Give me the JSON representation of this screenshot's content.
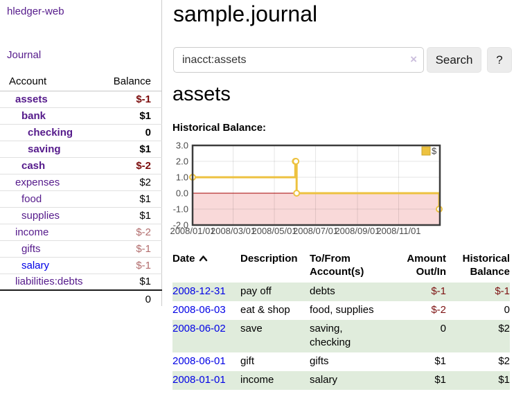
{
  "sidebar": {
    "brand": "hledger-web",
    "nav": {
      "journal": "Journal"
    },
    "columns": {
      "account": "Account",
      "balance": "Balance"
    },
    "accounts": [
      {
        "name": "assets",
        "depth": 1,
        "balance": "$-1",
        "matched": true,
        "negative": true,
        "unvisited": false
      },
      {
        "name": "bank",
        "depth": 2,
        "balance": "$1",
        "matched": true,
        "negative": false,
        "unvisited": false
      },
      {
        "name": "checking",
        "depth": 3,
        "balance": "0",
        "matched": true,
        "negative": false,
        "unvisited": false
      },
      {
        "name": "saving",
        "depth": 3,
        "balance": "$1",
        "matched": true,
        "negative": false,
        "unvisited": false
      },
      {
        "name": "cash",
        "depth": 2,
        "balance": "$-2",
        "matched": true,
        "negative": true,
        "unvisited": false
      },
      {
        "name": "expenses",
        "depth": 1,
        "balance": "$2",
        "matched": false,
        "negative": false,
        "unvisited": false
      },
      {
        "name": "food",
        "depth": 2,
        "balance": "$1",
        "matched": false,
        "negative": false,
        "unvisited": false
      },
      {
        "name": "supplies",
        "depth": 2,
        "balance": "$1",
        "matched": false,
        "negative": false,
        "unvisited": false
      },
      {
        "name": "income",
        "depth": 1,
        "balance": "$-2",
        "matched": false,
        "negative": true,
        "unvisited": false
      },
      {
        "name": "gifts",
        "depth": 2,
        "balance": "$-1",
        "matched": false,
        "negative": true,
        "unvisited": false
      },
      {
        "name": "salary",
        "depth": 2,
        "balance": "$-1",
        "matched": false,
        "negative": true,
        "unvisited": true
      },
      {
        "name": "liabilities:debts",
        "depth": 1,
        "balance": "$1",
        "matched": false,
        "negative": false,
        "unvisited": false
      }
    ],
    "total": "0"
  },
  "header": {
    "title": "sample.journal"
  },
  "search": {
    "value": "inacct:assets",
    "clear_icon": "×",
    "search_button": "Search",
    "help_button": "?"
  },
  "account_page": {
    "heading": "assets",
    "chart_title": "Historical Balance:"
  },
  "chart_data": {
    "type": "line",
    "step": true,
    "title": "Historical Balance:",
    "series": [
      {
        "name": "$",
        "color": "#EDC240",
        "points": [
          [
            "2008-01-01",
            1
          ],
          [
            "2008-06-01",
            2
          ],
          [
            "2008-06-02",
            2
          ],
          [
            "2008-06-03",
            0
          ],
          [
            "2008-12-31",
            -1
          ]
        ]
      }
    ],
    "x_range": [
      "2008-01-01",
      "2009-01-01"
    ],
    "ylim": [
      -2,
      3
    ],
    "y_ticks": [
      {
        "value": 3,
        "label": "3.0"
      },
      {
        "value": 2,
        "label": "2.0"
      },
      {
        "value": 1,
        "label": "1.0"
      },
      {
        "value": 0,
        "label": "0.0"
      },
      {
        "value": -1,
        "label": "-1.0"
      },
      {
        "value": -2,
        "label": "-2.0"
      }
    ],
    "x_ticks": [
      {
        "date": "2008-01-01",
        "label": "2008/01/01"
      },
      {
        "date": "2008-03-01",
        "label": "2008/03/01"
      },
      {
        "date": "2008-05-01",
        "label": "2008/05/01"
      },
      {
        "date": "2008-07-01",
        "label": "2008/07/01"
      },
      {
        "date": "2008-09-01",
        "label": "2008/09/01"
      },
      {
        "date": "2008-11-01",
        "label": "2008/11/01"
      }
    ],
    "legend": {
      "position": "top-right",
      "items": [
        {
          "label": "$",
          "color": "#EDC240"
        }
      ]
    },
    "grid": true,
    "zero_line_color": "#a40000",
    "negative_region_fill": "#f9d9d9"
  },
  "register": {
    "columns": {
      "date": "Date",
      "description": "Description",
      "tofrom": "To/From Account(s)",
      "amount": "Amount Out/In",
      "balance": "Historical Balance"
    },
    "sort_direction": "ascending",
    "rows": [
      {
        "date": "2008-12-31",
        "description": "pay off",
        "accounts": [
          "debts"
        ],
        "amount": "$-1",
        "amount_negative": true,
        "balance": "$-1",
        "balance_negative": true
      },
      {
        "date": "2008-06-03",
        "description": "eat & shop",
        "accounts": [
          "food, supplies"
        ],
        "amount": "$-2",
        "amount_negative": true,
        "balance": "0",
        "balance_negative": false
      },
      {
        "date": "2008-06-02",
        "description": "save",
        "accounts": [
          "saving,",
          "checking"
        ],
        "amount": "0",
        "amount_negative": false,
        "balance": "$2",
        "balance_negative": false
      },
      {
        "date": "2008-06-01",
        "description": "gift",
        "accounts": [
          "gifts"
        ],
        "amount": "$1",
        "amount_negative": false,
        "balance": "$2",
        "balance_negative": false
      },
      {
        "date": "2008-01-01",
        "description": "income",
        "accounts": [
          "salary"
        ],
        "amount": "$1",
        "amount_negative": false,
        "balance": "$1",
        "balance_negative": false
      }
    ]
  },
  "colors": {
    "accent_purple": "#551a8b",
    "link_blue": "#0000e6",
    "negative_strong": "#7b0c0c",
    "negative_soft": "#b26d6d",
    "negative_table": "#7d1212",
    "stripe_green": "#e0ecdc",
    "chart_gold": "#EDC240",
    "button_bg": "#ececec"
  }
}
